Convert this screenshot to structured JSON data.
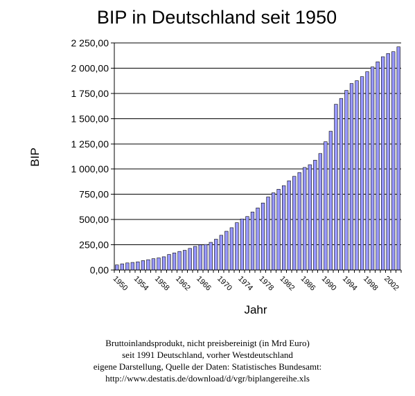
{
  "chart_data": {
    "type": "bar",
    "title": "BIP in Deutschland seit 1950",
    "xlabel": "Jahr",
    "ylabel": "BIP",
    "ylim": [
      0,
      2250
    ],
    "yticks": [
      "0,00",
      "250,00",
      "500,00",
      "750,00",
      "1 000,00",
      "1 250,00",
      "1 500,00",
      "1 750,00",
      "2 000,00",
      "2 250,00"
    ],
    "xticks": [
      "1950",
      "1954",
      "1958",
      "1962",
      "1966",
      "1970",
      "1974",
      "1978",
      "1982",
      "1986",
      "1990",
      "1994",
      "1998",
      "2002"
    ],
    "grid": "horizontal",
    "bar_color": "#9999ff",
    "categories": [
      "1950",
      "1951",
      "1952",
      "1953",
      "1954",
      "1955",
      "1956",
      "1957",
      "1958",
      "1959",
      "1960",
      "1961",
      "1962",
      "1963",
      "1964",
      "1965",
      "1966",
      "1967",
      "1968",
      "1969",
      "1970",
      "1971",
      "1972",
      "1973",
      "1974",
      "1975",
      "1976",
      "1977",
      "1978",
      "1979",
      "1980",
      "1981",
      "1982",
      "1983",
      "1984",
      "1985",
      "1986",
      "1987",
      "1988",
      "1989",
      "1990",
      "1991",
      "1992",
      "1993",
      "1994",
      "1995",
      "1996",
      "1997",
      "1998",
      "1999",
      "2000",
      "2001",
      "2002",
      "2003",
      "2004"
    ],
    "values": [
      50,
      61,
      70,
      75,
      81,
      93,
      102,
      112,
      120,
      131,
      154,
      169,
      184,
      195,
      214,
      234,
      249,
      253,
      274,
      305,
      344,
      384,
      419,
      469,
      506,
      530,
      575,
      615,
      664,
      724,
      765,
      800,
      836,
      884,
      928,
      966,
      1016,
      1043,
      1088,
      1154,
      1271,
      1375,
      1642,
      1700,
      1780,
      1848,
      1876,
      1916,
      1965,
      2012,
      2063,
      2113,
      2145,
      2163,
      2211
    ]
  },
  "caption": {
    "line1": "Bruttoinlandsprodukt, nicht preisbereinigt (in Mrd Euro)",
    "line2": "seit 1991 Deutschland, vorher Westdeutschland",
    "line3": "eigene Darstellung, Quelle der Daten: Statistisches Bundesamt:",
    "line4": "http://www.destatis.de/download/d/vgr/biplangereihe.xls"
  }
}
